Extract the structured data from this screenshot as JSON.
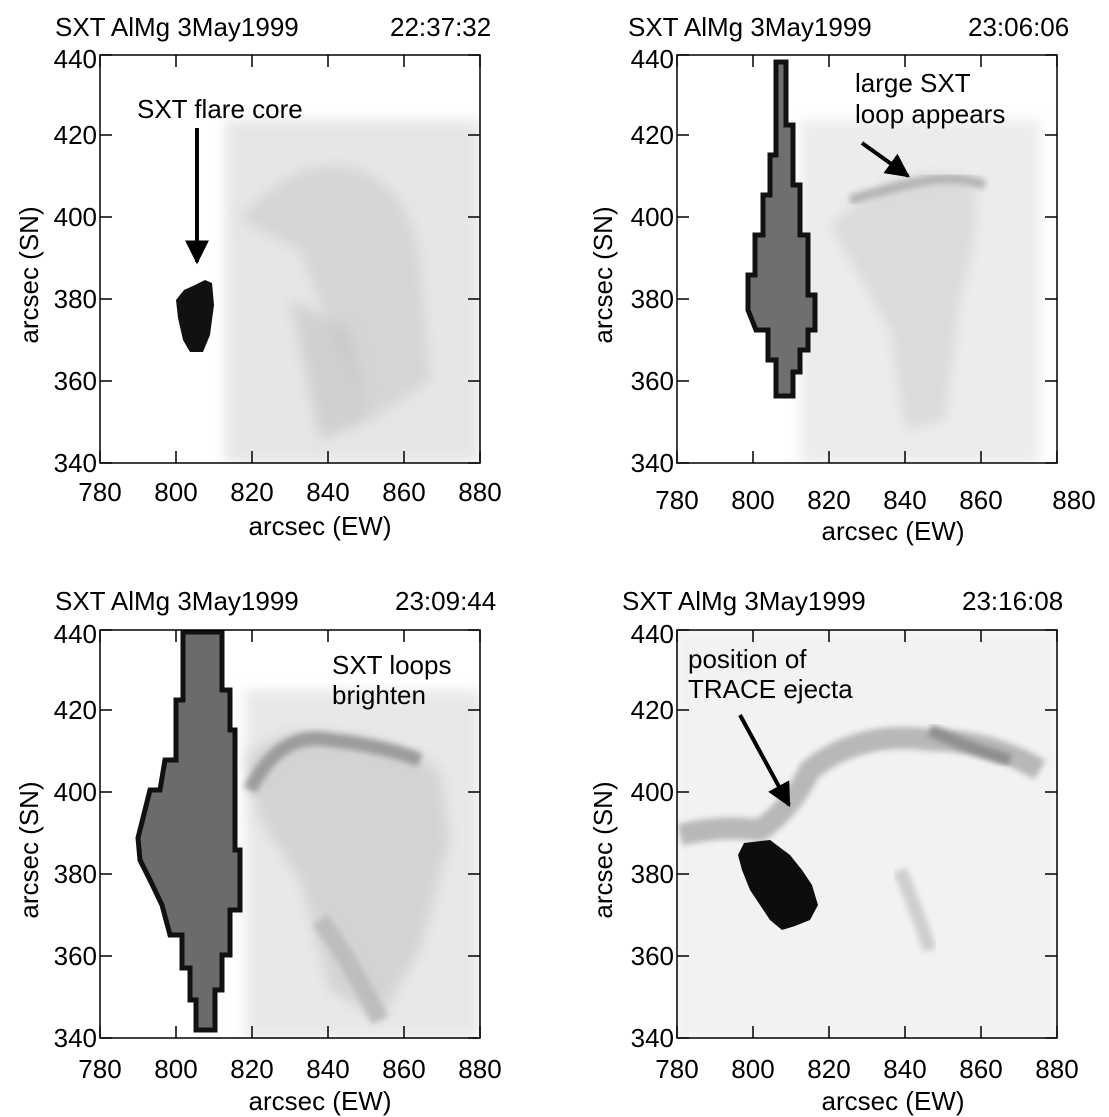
{
  "panels": [
    {
      "title": "SXT AlMg 3May1999",
      "time": "22:37:32",
      "xlabel": "arcsec (EW)",
      "ylabel": "arcsec (SN)",
      "xticks": [
        "780",
        "800",
        "820",
        "840",
        "860",
        "880"
      ],
      "yticks": [
        "340",
        "360",
        "380",
        "400",
        "420",
        "440"
      ],
      "annotation_lines": [
        "SXT flare core"
      ]
    },
    {
      "title": "SXT AlMg 3May1999",
      "time": "23:06:06",
      "xlabel": "arcsec (EW)",
      "ylabel": "arcsec (SN)",
      "xticks": [
        "780",
        "800",
        "820",
        "840",
        "860",
        "880"
      ],
      "yticks": [
        "340",
        "360",
        "380",
        "400",
        "420",
        "440"
      ],
      "annotation_lines": [
        "large SXT",
        "loop appears"
      ]
    },
    {
      "title": "SXT AlMg 3May1999",
      "time": "23:09:44",
      "xlabel": "arcsec (EW)",
      "ylabel": "arcsec (SN)",
      "xticks": [
        "780",
        "800",
        "820",
        "840",
        "860",
        "880"
      ],
      "yticks": [
        "340",
        "360",
        "380",
        "400",
        "420",
        "440"
      ],
      "annotation_lines": [
        "SXT loops",
        "brighten"
      ]
    },
    {
      "title": "SXT AlMg 3May1999",
      "time": "23:16:08",
      "xlabel": "arcsec (EW)",
      "ylabel": "arcsec (SN)",
      "xticks": [
        "780",
        "800",
        "820",
        "840",
        "860",
        "880"
      ],
      "yticks": [
        "340",
        "360",
        "380",
        "400",
        "420",
        "440"
      ],
      "annotation_lines": [
        "position of",
        "TRACE ejecta"
      ]
    }
  ]
}
